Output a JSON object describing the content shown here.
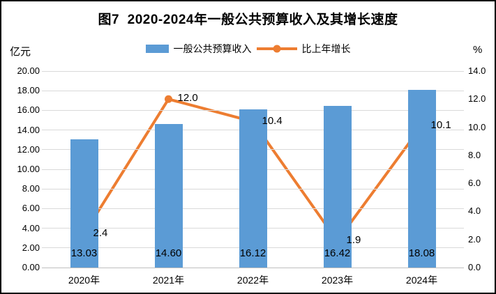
{
  "frame": {
    "title": "图7  2020-2024年一般公共预算收入及其增长速度",
    "left_unit": "亿元",
    "right_unit": "%"
  },
  "legend": {
    "items": [
      {
        "type": "bar",
        "label": "一般公共预算收入",
        "color": "#5b9bd5"
      },
      {
        "type": "line",
        "label": "比上年增长",
        "color": "#ed7d31"
      }
    ]
  },
  "chart_data": {
    "type": "bar",
    "subtype": "combo-bar-line",
    "title": "图7  2020-2024年一般公共预算收入及其增长速度",
    "categories": [
      "2020年",
      "2021年",
      "2022年",
      "2023年",
      "2024年"
    ],
    "series": [
      {
        "name": "一般公共预算收入",
        "type": "bar",
        "axis": "left",
        "unit": "亿元",
        "color": "#5b9bd5",
        "values": [
          13.03,
          14.6,
          16.12,
          16.42,
          18.08
        ],
        "labels": [
          "13.03",
          "14.60",
          "16.12",
          "16.42",
          "18.08"
        ]
      },
      {
        "name": "比上年增长",
        "type": "line",
        "axis": "right",
        "unit": "%",
        "color": "#ed7d31",
        "values": [
          2.4,
          12.0,
          10.4,
          1.9,
          10.1
        ],
        "labels": [
          "2.4",
          "12.0",
          "10.4",
          "1.9",
          "10.1"
        ]
      }
    ],
    "left_axis": {
      "min": 0,
      "max": 20,
      "step": 2,
      "ticks": [
        "20.00",
        "18.00",
        "16.00",
        "14.00",
        "12.00",
        "10.00",
        "8.00",
        "6.00",
        "4.00",
        "2.00",
        "0.00"
      ]
    },
    "right_axis": {
      "min": 0,
      "max": 14,
      "step": 2,
      "ticks": [
        "14.0",
        "12.0",
        "10.0",
        "8.0",
        "6.0",
        "4.0",
        "2.0",
        "0.0"
      ]
    },
    "grid": true,
    "grid_color": "#d9d9d9",
    "axis_line_color": "#bfbfbf",
    "legend_position": "top"
  }
}
